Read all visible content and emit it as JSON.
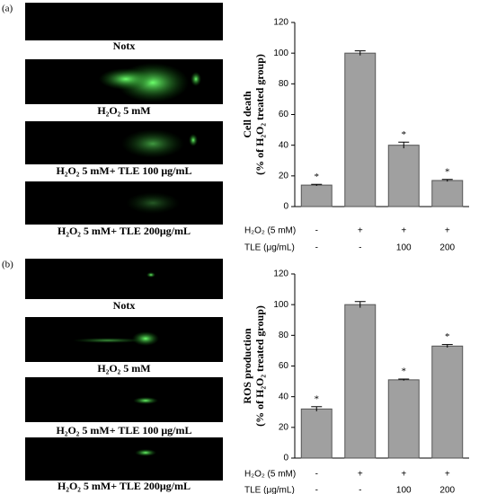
{
  "panels": [
    {
      "label": "(a)",
      "image_captions": [
        "Notx",
        "H₂O₂ 5 mM",
        "H₂O₂ 5 mM+ TLE 100 μg/mL",
        "H₂O₂ 5 mM+ TLE 200μg/mL"
      ]
    },
    {
      "label": "(b)",
      "image_captions": [
        "Notx",
        "H₂O₂ 5 mM",
        "H₂O₂ 5 mM+ TLE 100 μg/mL",
        "H₂O₂ 5 mM+ TLE 200μg/mL"
      ]
    }
  ],
  "chart_data": [
    {
      "type": "bar",
      "ylabel": [
        "Cell death",
        "(% of H₂O₂ treated group)"
      ],
      "values": [
        14,
        100,
        40,
        17
      ],
      "errors": [
        0.5,
        1.5,
        2,
        0.7
      ],
      "annotations": [
        "*",
        null,
        "*",
        "*"
      ],
      "color": "#a0a0a0",
      "ylim": [
        0,
        120
      ],
      "yticks": [
        0,
        20,
        40,
        60,
        80,
        100,
        120
      ],
      "treatments": [
        {
          "label": "H₂O₂ (5 mM)",
          "values": [
            "-",
            "+",
            "+",
            "+"
          ]
        },
        {
          "label": "TLE (μg/mL)",
          "values": [
            "-",
            "-",
            "100",
            "200"
          ]
        }
      ]
    },
    {
      "type": "bar",
      "ylabel": [
        "ROS production",
        "(% of H₂O₂ treated group)"
      ],
      "values": [
        32,
        100,
        51,
        73
      ],
      "errors": [
        1.5,
        2,
        0.5,
        1
      ],
      "annotations": [
        "*",
        null,
        "*",
        "*"
      ],
      "color": "#a0a0a0",
      "ylim": [
        0,
        120
      ],
      "yticks": [
        0,
        20,
        40,
        60,
        80,
        100,
        120
      ],
      "treatments": [
        {
          "label": "H₂O₂ (5 mM)",
          "values": [
            "-",
            "+",
            "+",
            "+"
          ]
        },
        {
          "label": "TLE (μg/mL)",
          "values": [
            "-",
            "-",
            "100",
            "200"
          ]
        }
      ]
    }
  ]
}
